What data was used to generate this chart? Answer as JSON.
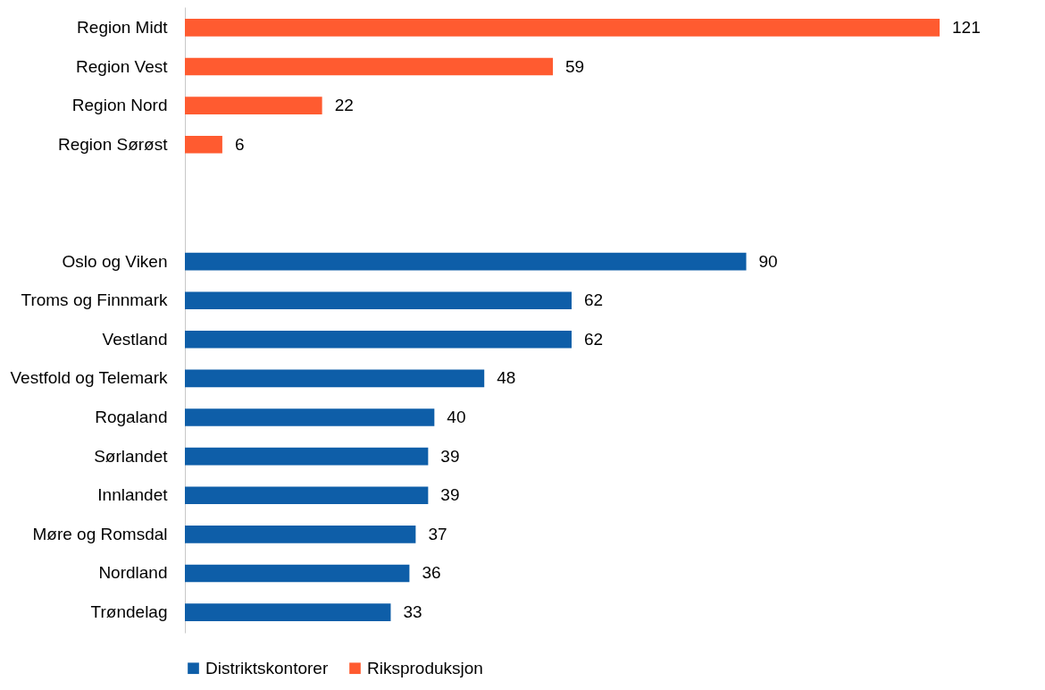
{
  "chart_data": {
    "type": "bar",
    "orientation": "horizontal",
    "data_labels": true,
    "legend": "bottom",
    "grid": false,
    "categories": [
      "Region Midt",
      "Region Vest",
      "Region Nord",
      "Region Sørøst",
      null,
      null,
      "Oslo og Viken",
      "Troms og Finnmark",
      "Vestland",
      "Vestfold og Telemark",
      "Rogaland",
      "Sørlandet",
      "Innlandet",
      "Møre og Romsdal",
      "Nordland",
      "Trøndelag"
    ],
    "series": [
      {
        "name": "Distriktskontorer",
        "color": "#0e5ea8",
        "values": [
          null,
          null,
          null,
          null,
          null,
          null,
          90,
          62,
          62,
          48,
          40,
          39,
          39,
          37,
          36,
          33
        ]
      },
      {
        "name": "Riksproduksjon",
        "color": "#ff5b30",
        "values": [
          121,
          59,
          22,
          6,
          null,
          null,
          null,
          null,
          null,
          null,
          null,
          null,
          null,
          null,
          null,
          null
        ]
      }
    ]
  }
}
